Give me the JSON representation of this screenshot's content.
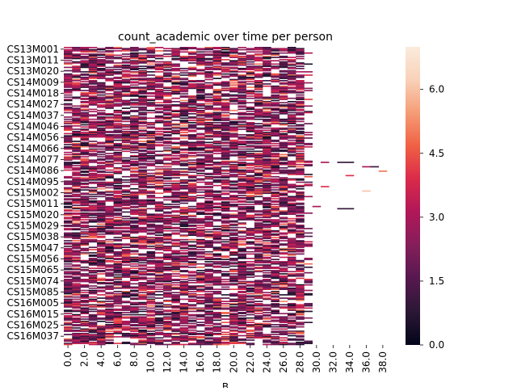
{
  "chart_data": {
    "type": "heatmap",
    "title": "count_academic over time per person",
    "xlabel": "B",
    "ylabel": "",
    "x_tick_labels": [
      "0.0",
      "2.0",
      "4.0",
      "6.0",
      "8.0",
      "10.0",
      "12.0",
      "14.0",
      "16.0",
      "18.0",
      "20.0",
      "22.0",
      "24.0",
      "26.0",
      "28.0",
      "30.0",
      "32.0",
      "34.0",
      "36.0",
      "38.0"
    ],
    "x_range": [
      0,
      39
    ],
    "y_tick_labels": [
      "CS13M001",
      "CS13M011",
      "CS13M020",
      "CS14M009",
      "CS14M018",
      "CS14M027",
      "CS14M037",
      "CS14M046",
      "CS14M056",
      "CS14M066",
      "CS14M077",
      "CS14M086",
      "CS14M095",
      "CS15M002",
      "CS15M011",
      "CS15M020",
      "CS15M029",
      "CS15M038",
      "CS15M047",
      "CS15M056",
      "CS15M065",
      "CS15M074",
      "CS15M085",
      "CS16M005",
      "CS16M015",
      "CS16M025",
      "CS16M037"
    ],
    "n_rows": 270,
    "missing_color": "#ffffff",
    "colorbar": {
      "vmin": 0.0,
      "vmax": 7.0,
      "tick_labels": [
        "0.0",
        "1.5",
        "3.0",
        "4.5",
        "6.0"
      ],
      "tick_values": [
        0.0,
        1.5,
        3.0,
        4.5,
        6.0
      ],
      "colormap": "rocket",
      "stops": [
        "#03051a",
        "#2b1735",
        "#56184f",
        "#841e5a",
        "#b01759",
        "#da2a4a",
        "#f06043",
        "#f59c76",
        "#f9d1b8",
        "#faebdd"
      ]
    },
    "cell_values_note": "",
    "sparse_cells": [
      {
        "row": 104,
        "col": 31,
        "value": 3.0
      },
      {
        "row": 104,
        "col": 33,
        "value": 1.0
      },
      {
        "row": 104,
        "col": 34,
        "value": 1.0
      },
      {
        "row": 108,
        "col": 36,
        "value": 3.0
      },
      {
        "row": 108,
        "col": 37,
        "value": 1.0
      },
      {
        "row": 112,
        "col": 38,
        "value": 5.0
      },
      {
        "row": 116,
        "col": 34,
        "value": 4.0
      },
      {
        "row": 126,
        "col": 31,
        "value": 4.0
      },
      {
        "row": 130,
        "col": 36,
        "value": 6.0
      },
      {
        "row": 144,
        "col": 30,
        "value": 3.0
      },
      {
        "row": 146,
        "col": 33,
        "value": 1.0
      },
      {
        "row": 146,
        "col": 34,
        "value": 1.0
      }
    ]
  }
}
